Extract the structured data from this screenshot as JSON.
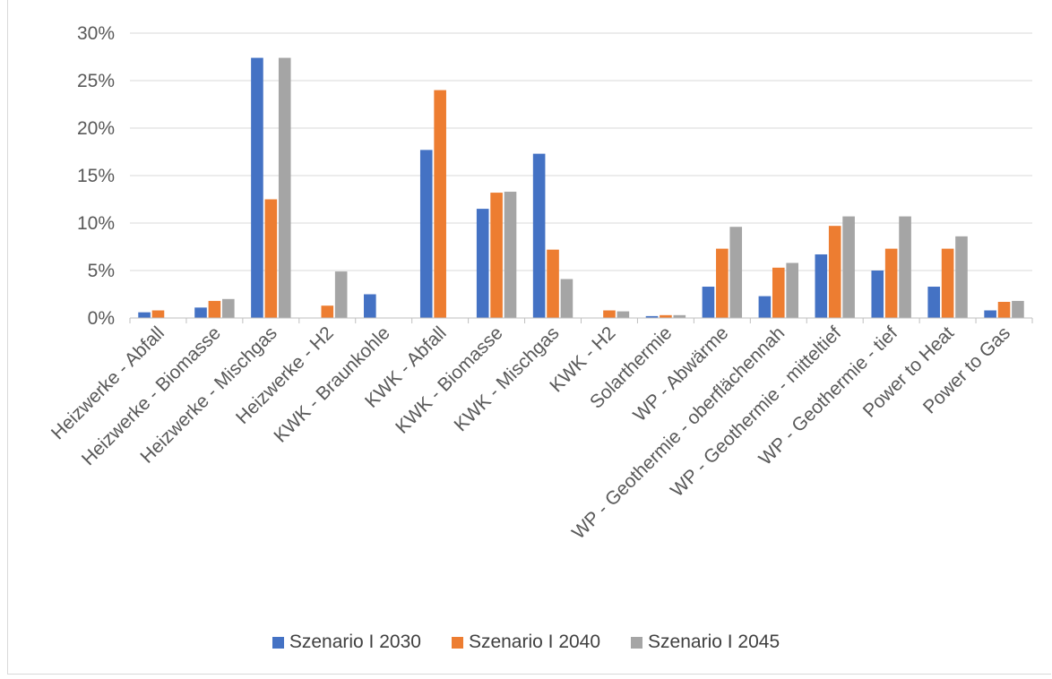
{
  "chart_data": {
    "type": "bar",
    "title": "",
    "xlabel": "",
    "ylabel": "",
    "ylim": [
      0,
      0.3
    ],
    "y_ticks": [
      "0%",
      "5%",
      "10%",
      "15%",
      "20%",
      "25%",
      "30%"
    ],
    "grid": true,
    "legend_position": "bottom",
    "categories": [
      "Heizwerke - Abfall",
      "Heizwerke - Biomasse",
      "Heizwerke - Mischgas",
      "Heizwerke - H2",
      "KWK - Braunkohle",
      "KWK - Abfall",
      "KWK - Biomasse",
      "KWK - Mischgas",
      "KWK - H2",
      "Solarthermie",
      "WP - Abwärme",
      "WP - Geothermie - oberflächennah",
      "WP - Geothermie - mitteltief",
      "WP - Geothermie - tief",
      "Power to Heat",
      "Power to Gas"
    ],
    "series": [
      {
        "name": "Szenario I 2030",
        "color": "#4472C4",
        "values": [
          0.006,
          0.011,
          0.274,
          0.0,
          0.025,
          0.177,
          0.115,
          0.173,
          0.0,
          0.002,
          0.033,
          0.023,
          0.067,
          0.05,
          0.033,
          0.008
        ]
      },
      {
        "name": "Szenario I 2040",
        "color": "#ED7D31",
        "values": [
          0.008,
          0.018,
          0.125,
          0.013,
          0.0,
          0.24,
          0.132,
          0.072,
          0.008,
          0.003,
          0.073,
          0.053,
          0.097,
          0.073,
          0.073,
          0.017
        ]
      },
      {
        "name": "Szenario I 2045",
        "color": "#A5A5A5",
        "values": [
          0.0,
          0.02,
          0.274,
          0.049,
          0.0,
          0.0,
          0.133,
          0.041,
          0.007,
          0.003,
          0.096,
          0.058,
          0.107,
          0.107,
          0.086,
          0.018
        ]
      }
    ]
  }
}
